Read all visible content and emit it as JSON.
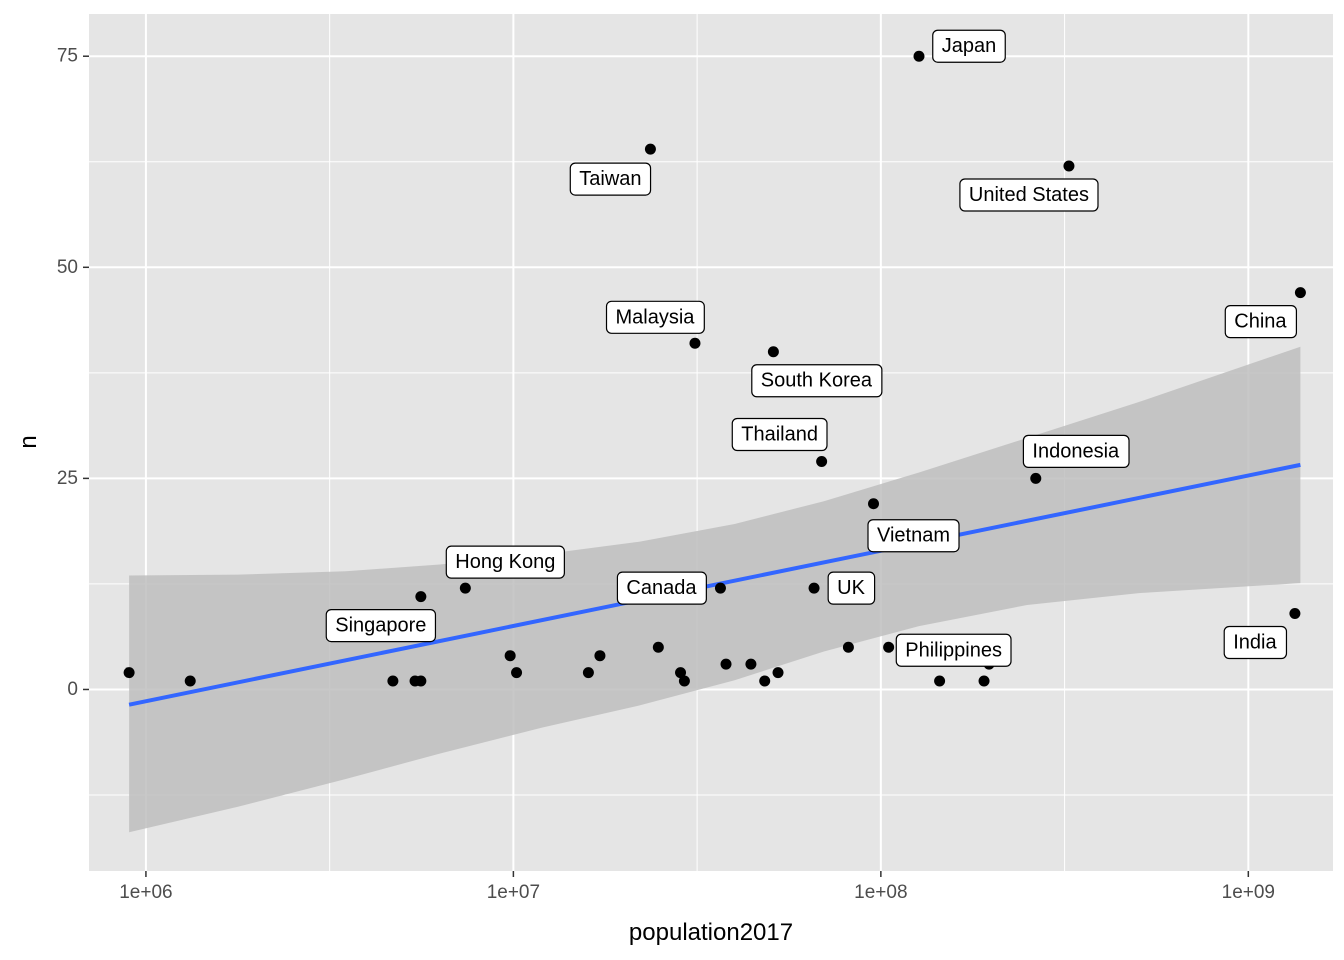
{
  "chart_data": {
    "type": "scatter",
    "xlabel": "population2017",
    "ylabel": "n",
    "x_scale": "log10",
    "xlim": [
      700000,
      1700000000
    ],
    "ylim": [
      -21.5,
      80
    ],
    "x_ticks": [
      {
        "value": 1000000,
        "label": "1e+06"
      },
      {
        "value": 10000000,
        "label": "1e+07"
      },
      {
        "value": 100000000,
        "label": "1e+08"
      },
      {
        "value": 1000000000,
        "label": "1e+09"
      }
    ],
    "y_ticks": [
      {
        "value": 0,
        "label": "0"
      },
      {
        "value": 25,
        "label": "25"
      },
      {
        "value": 50,
        "label": "50"
      },
      {
        "value": 75,
        "label": "75"
      }
    ],
    "grid": true,
    "colors": {
      "panel_background": "#E5E5E5",
      "grid": "#FFFFFF",
      "points": "#000000",
      "fit_line": "#3366FF",
      "confidence_band": "#BEBEBE"
    },
    "points": [
      {
        "x": 900000,
        "y": 2
      },
      {
        "x": 1320000,
        "y": 1
      },
      {
        "x": 4700000,
        "y": 1
      },
      {
        "x": 5400000,
        "y": 1
      },
      {
        "x": 5600000,
        "y": 1
      },
      {
        "x": 5600000,
        "y": 11,
        "label": "Singapore"
      },
      {
        "x": 7400000,
        "y": 12,
        "label": "Hong Kong"
      },
      {
        "x": 9800000,
        "y": 4
      },
      {
        "x": 10200000,
        "y": 2
      },
      {
        "x": 16000000,
        "y": 2
      },
      {
        "x": 17200000,
        "y": 4
      },
      {
        "x": 23600000,
        "y": 64,
        "label": "Taiwan"
      },
      {
        "x": 24800000,
        "y": 5
      },
      {
        "x": 28500000,
        "y": 2
      },
      {
        "x": 29200000,
        "y": 1
      },
      {
        "x": 31200000,
        "y": 41,
        "label": "Malaysia"
      },
      {
        "x": 36600000,
        "y": 12,
        "label": "Canada"
      },
      {
        "x": 37900000,
        "y": 3
      },
      {
        "x": 44300000,
        "y": 3
      },
      {
        "x": 48300000,
        "y": 1
      },
      {
        "x": 51000000,
        "y": 40,
        "label": "South Korea"
      },
      {
        "x": 52500000,
        "y": 2
      },
      {
        "x": 65800000,
        "y": 12,
        "label": "UK"
      },
      {
        "x": 69000000,
        "y": 27,
        "label": "Thailand"
      },
      {
        "x": 81600000,
        "y": 5
      },
      {
        "x": 95500000,
        "y": 22,
        "label": "Vietnam"
      },
      {
        "x": 105000000,
        "y": 5,
        "label": "Philippines"
      },
      {
        "x": 127000000,
        "y": 75,
        "label": "Japan"
      },
      {
        "x": 129000000,
        "y": 4
      },
      {
        "x": 144500000,
        "y": 1
      },
      {
        "x": 164700000,
        "y": 4
      },
      {
        "x": 190900000,
        "y": 1
      },
      {
        "x": 197000000,
        "y": 3
      },
      {
        "x": 209000000,
        "y": 5
      },
      {
        "x": 264000000,
        "y": 25,
        "label": "Indonesia"
      },
      {
        "x": 325000000,
        "y": 62,
        "label": "United States"
      },
      {
        "x": 1339000000,
        "y": 9,
        "label": "India"
      },
      {
        "x": 1386000000,
        "y": 47,
        "label": "China"
      }
    ],
    "fit_line": {
      "x": [
        900000,
        1386000000
      ],
      "y": [
        -1.8,
        26.6
      ]
    },
    "confidence_band": {
      "x": [
        900000,
        1780000,
        3500000,
        6300000,
        12000000,
        22000000,
        40000000,
        70000000,
        127000000,
        250000000,
        500000000,
        1386000000
      ],
      "upper": [
        13.5,
        13.6,
        14.0,
        14.8,
        16.0,
        17.5,
        19.6,
        22.3,
        25.7,
        29.8,
        34.0,
        40.6
      ],
      "lower": [
        -16.9,
        -13.9,
        -10.6,
        -7.6,
        -4.5,
        -1.9,
        1.1,
        4.5,
        7.5,
        10.0,
        11.4,
        12.6
      ]
    }
  }
}
